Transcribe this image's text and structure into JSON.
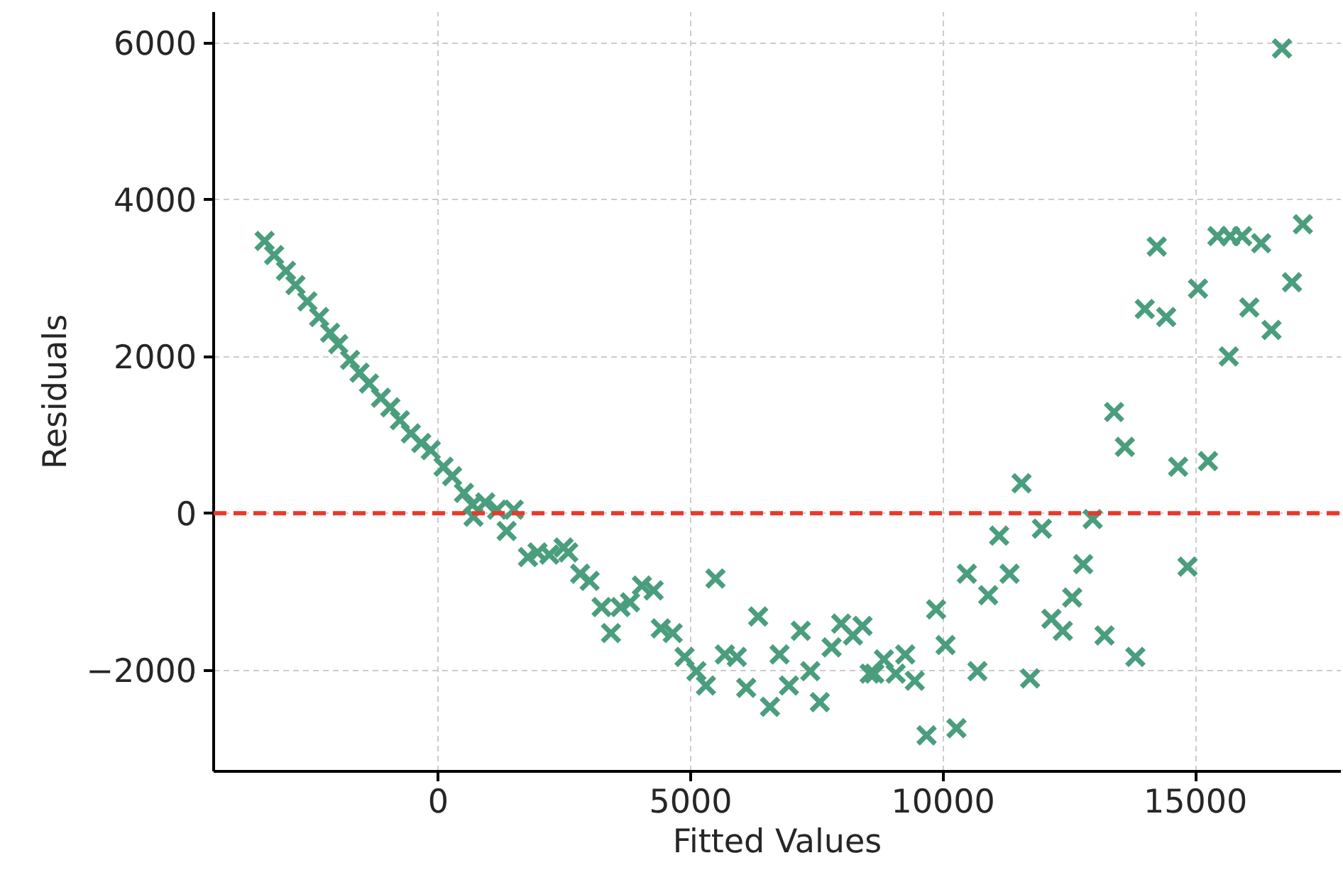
{
  "chart_data": {
    "type": "scatter",
    "xlabel": "Fitted Values",
    "ylabel": "Residuals",
    "xlim": [
      -4450,
      17880
    ],
    "ylim": [
      -3290,
      6390
    ],
    "xticks": [
      0,
      5000,
      10000,
      15000
    ],
    "yticks": [
      {
        "value": -2000,
        "label": "−2000"
      },
      0,
      2000,
      4000,
      6000
    ],
    "grid": true,
    "marker": "cross",
    "ref_lines": [
      {
        "axis": "y",
        "value": 0,
        "color": "#e8392b",
        "line_style": "dashed"
      }
    ],
    "series": [
      {
        "color": "#4a9e7d",
        "x": [
          -3441,
          -3252,
          -3017,
          -2829,
          -2594,
          -2360,
          -2143,
          -1982,
          -1748,
          -1559,
          -1373,
          -1136,
          -950,
          -761,
          -544,
          -338,
          -149,
          104,
          274,
          508,
          677,
          931,
          697,
          1165,
          1495,
          1354,
          1777,
          1966,
          2200,
          2482,
          2575,
          2811,
          2998,
          3235,
          3421,
          3610,
          3798,
          4033,
          4267,
          4408,
          4644,
          4879,
          5113,
          5302,
          5491,
          5677,
          5914,
          6100,
          6337,
          6571,
          6760,
          6946,
          7181,
          7369,
          7558,
          7792,
          7981,
          8215,
          8404,
          8545,
          8638,
          8827,
          9061,
          9250,
          9439,
          9673,
          9862,
          10048,
          10265,
          10471,
          10680,
          10894,
          11111,
          11317,
          11554,
          11723,
          11957,
          12146,
          12372,
          12558,
          12775,
          12964,
          13198,
          13809,
          14842,
          16714,
          17127,
          16912,
          16506,
          16066,
          16301,
          15925,
          15688,
          15434,
          15660,
          15050,
          14233,
          13996,
          14420,
          13387,
          13601,
          14656,
          15248
        ],
        "values": [
          3473,
          3291,
          3091,
          2909,
          2702,
          2502,
          2302,
          2156,
          1956,
          1793,
          1655,
          1473,
          1351,
          1187,
          1018,
          896,
          805,
          593,
          473,
          260,
          109,
          138,
          -44,
          47,
          47,
          -225,
          -558,
          -498,
          -527,
          -436,
          -498,
          -771,
          -862,
          -1195,
          -1527,
          -1195,
          -1135,
          -922,
          -982,
          -1467,
          -1527,
          -1831,
          -2013,
          -2195,
          -831,
          -1800,
          -1831,
          -2225,
          -1316,
          -2467,
          -1800,
          -2195,
          -1498,
          -2013,
          -2407,
          -1709,
          -1407,
          -1558,
          -1436,
          -2044,
          -2044,
          -1862,
          -2044,
          -1800,
          -2135,
          -2831,
          -1225,
          -1680,
          -2740,
          -771,
          -2013,
          -1044,
          -285,
          -771,
          382,
          -2104,
          -195,
          -1345,
          -1498,
          -1073,
          -649,
          -73,
          -1558,
          -1831,
          -680,
          5927,
          3684,
          2945,
          2338,
          2624,
          3442,
          3533,
          3533,
          3533,
          2000,
          2865,
          3400,
          2605,
          2502,
          1291,
          847,
          593,
          665
        ]
      }
    ]
  }
}
